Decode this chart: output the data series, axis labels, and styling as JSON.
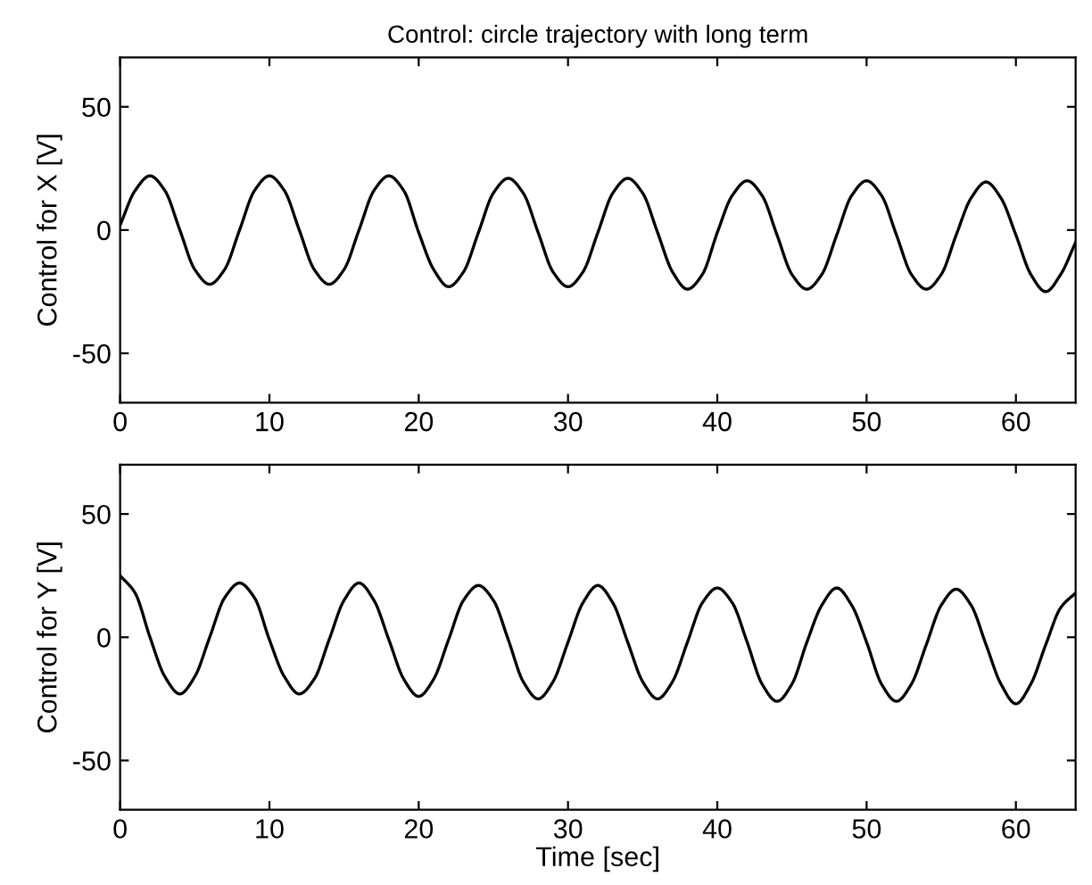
{
  "chart_data": [
    {
      "type": "line",
      "title": "Control: circle trajectory with long term",
      "ylabel": "Control for X [V]",
      "xlim": [
        0,
        64
      ],
      "ylim": [
        -70,
        70
      ],
      "xticks": [
        0,
        10,
        20,
        30,
        40,
        50,
        60
      ],
      "yticks": [
        -50,
        0,
        50
      ],
      "grid": false,
      "legend": false,
      "series": [
        {
          "color": "#000000",
          "x": [
            0,
            1,
            2,
            3,
            4,
            5,
            6,
            7,
            8,
            9,
            10,
            11,
            12,
            13,
            14,
            15,
            16,
            17,
            18,
            19,
            20,
            21,
            22,
            23,
            24,
            25,
            26,
            27,
            28,
            29,
            30,
            31,
            32,
            33,
            34,
            35,
            36,
            37,
            38,
            39,
            40,
            41,
            42,
            43,
            44,
            45,
            46,
            47,
            48,
            49,
            50,
            51,
            52,
            53,
            54,
            55,
            56,
            57,
            58,
            59,
            60,
            61,
            62,
            63,
            64
          ],
          "values": [
            2,
            16,
            22,
            16,
            0,
            -16,
            -22,
            -16,
            0,
            16,
            22,
            16,
            0,
            -16,
            -22,
            -16,
            0,
            16,
            22,
            16,
            -1,
            -16,
            -23,
            -17,
            -1,
            15,
            21,
            15,
            -1,
            -17,
            -23,
            -17,
            -1,
            15,
            21,
            15,
            -1,
            -17,
            -24,
            -18,
            -1,
            14,
            20,
            14,
            -2,
            -18,
            -24,
            -18,
            -2,
            14,
            20,
            14,
            -2,
            -18,
            -24,
            -18,
            -2,
            13,
            19.5,
            13,
            -2,
            -18,
            -25,
            -18,
            -5
          ]
        }
      ]
    },
    {
      "type": "line",
      "xlabel": "Time [sec]",
      "ylabel": "Control for Y [V]",
      "xlim": [
        0,
        64
      ],
      "ylim": [
        -70,
        70
      ],
      "xticks": [
        0,
        10,
        20,
        30,
        40,
        50,
        60
      ],
      "yticks": [
        -50,
        0,
        50
      ],
      "grid": false,
      "legend": false,
      "series": [
        {
          "color": "#000000",
          "x": [
            0,
            1,
            2,
            3,
            4,
            5,
            6,
            7,
            8,
            9,
            10,
            11,
            12,
            13,
            14,
            15,
            16,
            17,
            18,
            19,
            20,
            21,
            22,
            23,
            24,
            25,
            26,
            27,
            28,
            29,
            30,
            31,
            32,
            33,
            34,
            35,
            36,
            37,
            38,
            39,
            40,
            41,
            42,
            43,
            44,
            45,
            46,
            47,
            48,
            49,
            50,
            51,
            52,
            53,
            54,
            55,
            56,
            57,
            58,
            59,
            60,
            61,
            62,
            63,
            64
          ],
          "values": [
            25,
            18,
            0,
            -16,
            -23,
            -16,
            0,
            16,
            22,
            16,
            -1,
            -16,
            -23,
            -17,
            -1,
            15,
            22,
            15,
            -1,
            -17,
            -24,
            -17,
            -1,
            15,
            21,
            15,
            -1,
            -18,
            -25,
            -18,
            -2,
            14,
            21,
            14,
            -2,
            -18,
            -25,
            -18,
            -2,
            14,
            20,
            14,
            -2,
            -19,
            -26,
            -19,
            -2,
            13,
            20,
            13,
            -2,
            -19,
            -26,
            -19,
            -3,
            13,
            19.5,
            13,
            -3,
            -19,
            -27,
            -19,
            -3,
            12,
            18
          ]
        }
      ]
    }
  ]
}
